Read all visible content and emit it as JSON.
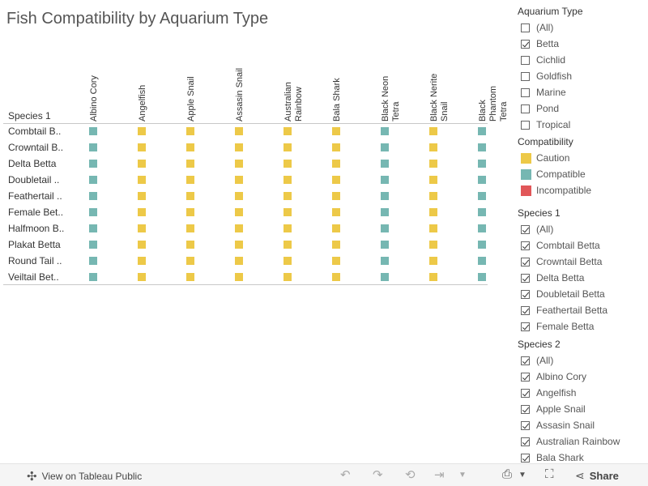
{
  "title": "Fish Compatibility by Aquarium Type",
  "row_header": "Species 1",
  "columns": [
    "Albino Cory",
    "Angelfish",
    "Apple Snail",
    "Assasin Snail",
    "Australian\nRainbow",
    "Bala Shark",
    "Black Neon\nTetra",
    "Black Nerite\nSnail",
    "Black\nPhantom\nTetra"
  ],
  "rows": [
    "Combtail B..",
    "Crowntail B..",
    "Delta Betta",
    "Doubletail ..",
    "Feathertail ..",
    "Female Bet..",
    "Halfmoon B..",
    "Plakat Betta",
    "Round Tail ..",
    "Veiltail Bet.."
  ],
  "column_compat": [
    "Compatible",
    "Caution",
    "Caution",
    "Caution",
    "Caution",
    "Caution",
    "Compatible",
    "Caution",
    "Compatible"
  ],
  "colors": {
    "Caution": "#EDC948",
    "Compatible": "#76B7B2",
    "Incompatible": "#E15759"
  },
  "filters": {
    "aquarium_type": {
      "title": "Aquarium Type",
      "options": [
        {
          "label": "(All)",
          "checked": false
        },
        {
          "label": "Betta",
          "checked": true
        },
        {
          "label": "Cichlid",
          "checked": false
        },
        {
          "label": "Goldfish",
          "checked": false
        },
        {
          "label": "Marine",
          "checked": false
        },
        {
          "label": "Pond",
          "checked": false
        },
        {
          "label": "Tropical",
          "checked": false
        }
      ]
    },
    "compatibility": {
      "title": "Compatibility",
      "items": [
        "Caution",
        "Compatible",
        "Incompatible"
      ]
    },
    "species1": {
      "title": "Species 1",
      "options": [
        {
          "label": "(All)",
          "checked": true
        },
        {
          "label": "Combtail Betta",
          "checked": true
        },
        {
          "label": "Crowntail Betta",
          "checked": true
        },
        {
          "label": "Delta Betta",
          "checked": true
        },
        {
          "label": "Doubletail Betta",
          "checked": true
        },
        {
          "label": "Feathertail Betta",
          "checked": true
        },
        {
          "label": "Female Betta",
          "checked": true
        }
      ]
    },
    "species2": {
      "title": "Species 2",
      "options": [
        {
          "label": "(All)",
          "checked": true
        },
        {
          "label": "Albino Cory",
          "checked": true
        },
        {
          "label": "Angelfish",
          "checked": true
        },
        {
          "label": "Apple Snail",
          "checked": true
        },
        {
          "label": "Assasin Snail",
          "checked": true
        },
        {
          "label": "Australian Rainbow",
          "checked": true
        },
        {
          "label": "Bala Shark",
          "checked": true
        }
      ]
    }
  },
  "toolbar": {
    "view_label": "View on Tableau Public",
    "share_label": "Share"
  }
}
